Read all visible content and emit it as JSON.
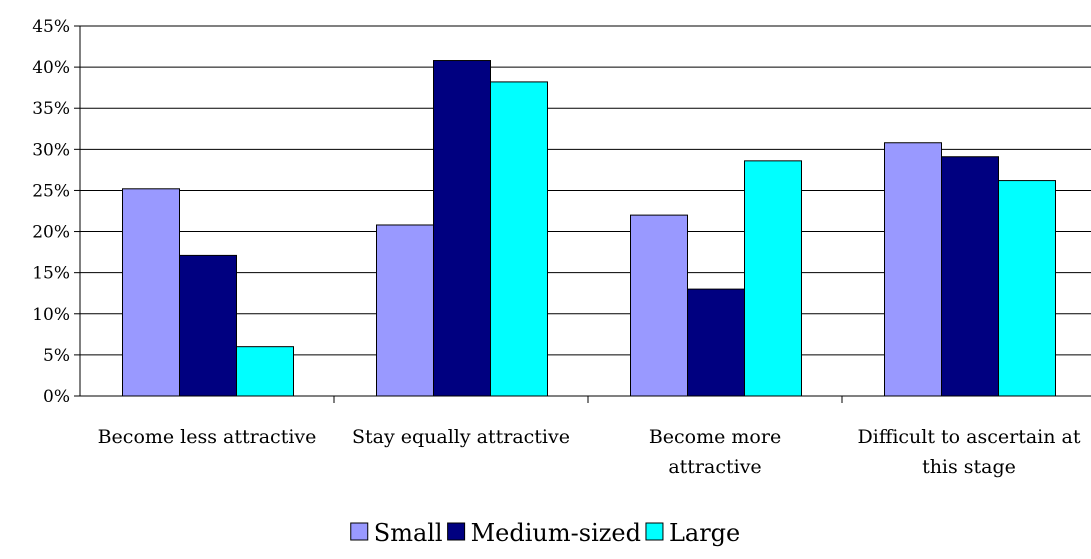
{
  "chart_data": {
    "type": "bar",
    "categories": [
      [
        "Become less attractive"
      ],
      [
        "Stay equally attractive"
      ],
      [
        "Become more",
        "attractive"
      ],
      [
        "Difficult to ascertain at",
        "this stage"
      ]
    ],
    "series": [
      {
        "name": "Small",
        "color": "#9999FF",
        "values": [
          25.2,
          20.8,
          22.0,
          30.8
        ]
      },
      {
        "name": "Medium-sized",
        "color": "#000080",
        "values": [
          17.1,
          40.8,
          13.0,
          29.1
        ]
      },
      {
        "name": "Large",
        "color": "#00FFFF",
        "values": [
          6.0,
          38.2,
          28.6,
          26.2
        ]
      }
    ],
    "y_ticks": [
      "0%",
      "5%",
      "10%",
      "15%",
      "20%",
      "25%",
      "30%",
      "35%",
      "40%",
      "45%"
    ],
    "ylim": [
      0,
      45
    ],
    "y_unit": "%",
    "grid": true,
    "legend_position": "bottom",
    "title": "",
    "xlabel": "",
    "ylabel": ""
  }
}
